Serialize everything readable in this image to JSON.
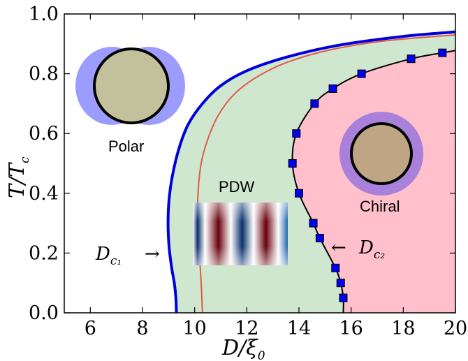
{
  "chart_data": {
    "type": "line",
    "title": "",
    "xlabel": "D/ξ",
    "xlabel_sub": "0",
    "ylabel": "T/T",
    "ylabel_sub": "c",
    "xlim": [
      5,
      20
    ],
    "ylim": [
      0,
      1
    ],
    "xticks": [
      6,
      8,
      10,
      12,
      14,
      16,
      18,
      20
    ],
    "yticks": [
      0.0,
      0.2,
      0.4,
      0.6,
      0.8,
      1.0
    ],
    "xtick_labels": [
      "6",
      "8",
      "10",
      "12",
      "14",
      "16",
      "18",
      "20"
    ],
    "ytick_labels": [
      "0.0",
      "0.2",
      "0.4",
      "0.6",
      "0.8",
      "1.0"
    ],
    "grid": false,
    "series": [
      {
        "color": "#0000dd",
        "x": [
          9.3,
          9.28,
          9.22,
          9.12,
          9.02,
          8.98,
          9.02,
          9.15,
          9.4,
          9.75,
          10.3,
          11.0,
          12.0,
          13.5,
          15.5,
          18.0,
          20.0
        ],
        "y": [
          0.0,
          0.05,
          0.1,
          0.15,
          0.22,
          0.3,
          0.38,
          0.46,
          0.55,
          0.63,
          0.7,
          0.76,
          0.81,
          0.855,
          0.895,
          0.925,
          0.94
        ]
      },
      {
        "color": "#e05a4a",
        "x": [
          10.3,
          10.25,
          10.18,
          10.12,
          10.13,
          10.25,
          10.5,
          10.9,
          11.5,
          12.4,
          13.6,
          15.2,
          17.3,
          20.0
        ],
        "y": [
          0.0,
          0.1,
          0.2,
          0.3,
          0.4,
          0.5,
          0.58,
          0.66,
          0.73,
          0.79,
          0.84,
          0.88,
          0.91,
          0.93
        ]
      },
      {
        "color": "#000000",
        "marker": "square",
        "marker_color": "#0000ee",
        "x": [
          15.7,
          15.6,
          15.4,
          14.8,
          14.55,
          14.0,
          13.75,
          13.9,
          14.6,
          15.3,
          16.4,
          18.3,
          19.5
        ],
        "y": [
          0.05,
          0.1,
          0.15,
          0.25,
          0.3,
          0.4,
          0.5,
          0.6,
          0.7,
          0.75,
          0.8,
          0.85,
          0.87
        ]
      }
    ],
    "regions": [
      {
        "label": "Polar",
        "fill": "#ffffff"
      },
      {
        "label": "PDW",
        "fill": "#cfe6cf"
      },
      {
        "label": "Chiral",
        "fill": "#ffc0cb"
      }
    ],
    "annotations": [
      {
        "label": "D",
        "sub": "c₁",
        "arrow": "→",
        "at_x": 9.1,
        "at_y": 0.2
      },
      {
        "label": "D",
        "sub": "c₂",
        "arrow": "←",
        "at_x": 14.8,
        "at_y": 0.2
      }
    ]
  }
}
